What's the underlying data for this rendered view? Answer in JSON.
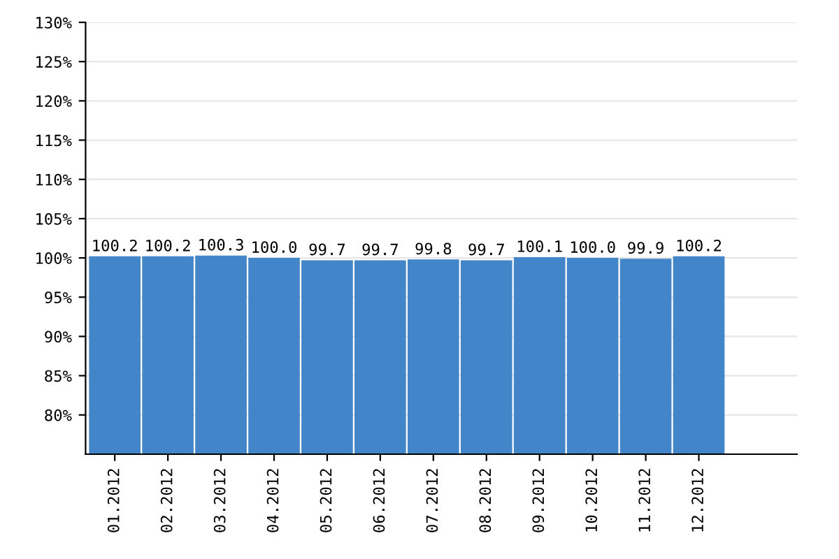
{
  "chart_data": {
    "type": "bar",
    "categories": [
      "01.2012",
      "02.2012",
      "03.2012",
      "04.2012",
      "05.2012",
      "06.2012",
      "07.2012",
      "08.2012",
      "09.2012",
      "10.2012",
      "11.2012",
      "12.2012"
    ],
    "values": [
      100.2,
      100.2,
      100.3,
      100.0,
      99.7,
      99.7,
      99.8,
      99.7,
      100.1,
      100.0,
      99.9,
      100.2
    ],
    "value_labels": [
      "100.2",
      "100.2",
      "100.3",
      "100.0",
      "99.7",
      "99.7",
      "99.8",
      "99.7",
      "100.1",
      "100.0",
      "99.9",
      "100.2"
    ],
    "color": "#4286c9",
    "ylim": [
      75,
      130
    ],
    "yticks": [
      {
        "value": 80,
        "label": "80%"
      },
      {
        "value": 85,
        "label": "85%"
      },
      {
        "value": 90,
        "label": "90%"
      },
      {
        "value": 95,
        "label": "95%"
      },
      {
        "value": 100,
        "label": "100%"
      },
      {
        "value": 105,
        "label": "105%"
      },
      {
        "value": 110,
        "label": "110%"
      },
      {
        "value": 115,
        "label": "115%"
      },
      {
        "value": 120,
        "label": "120%"
      },
      {
        "value": 125,
        "label": "125%"
      },
      {
        "value": 130,
        "label": "130%"
      }
    ],
    "grid": "y"
  }
}
